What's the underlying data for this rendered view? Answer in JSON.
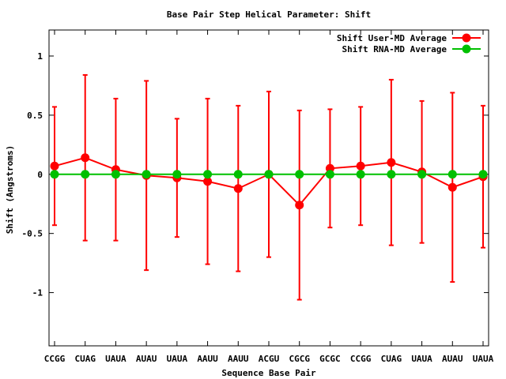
{
  "chart_data": {
    "type": "line",
    "title": "Base Pair Step Helical Parameter: Shift",
    "xlabel": "Sequence Base Pair",
    "ylabel": "Shift (Angstroms)",
    "ylim": [
      -1.45,
      1.22
    ],
    "yticks": [
      -1,
      -0.5,
      0,
      0.5,
      1
    ],
    "grid": false,
    "legend_position": "top-right",
    "categories": [
      "CCGG",
      "CUAG",
      "UAUA",
      "AUAU",
      "UAUA",
      "AAUU",
      "AAUU",
      "ACGU",
      "CGCG",
      "GCGC",
      "CCGG",
      "CUAG",
      "UAUA",
      "AUAU",
      "UAUA"
    ],
    "series": [
      {
        "name": "Shift User-MD Average",
        "color": "#ff0000",
        "values": [
          0.07,
          0.14,
          0.04,
          -0.01,
          -0.03,
          -0.06,
          -0.12,
          0.0,
          -0.26,
          0.05,
          0.07,
          0.1,
          0.02,
          -0.11,
          -0.02
        ],
        "err_high": [
          0.57,
          0.84,
          0.64,
          0.79,
          0.47,
          0.64,
          0.58,
          0.7,
          0.54,
          0.55,
          0.57,
          0.8,
          0.62,
          0.69,
          0.58
        ],
        "err_low": [
          -0.43,
          -0.56,
          -0.56,
          -0.81,
          -0.53,
          -0.76,
          -0.82,
          -0.7,
          -1.06,
          -0.45,
          -0.43,
          -0.6,
          -0.58,
          -0.91,
          -0.62
        ]
      },
      {
        "name": "Shift RNA-MD Average",
        "color": "#00c000",
        "values": [
          0,
          0,
          0,
          0,
          0,
          0,
          0,
          0,
          0,
          0,
          0,
          0,
          0,
          0,
          0
        ]
      }
    ]
  }
}
